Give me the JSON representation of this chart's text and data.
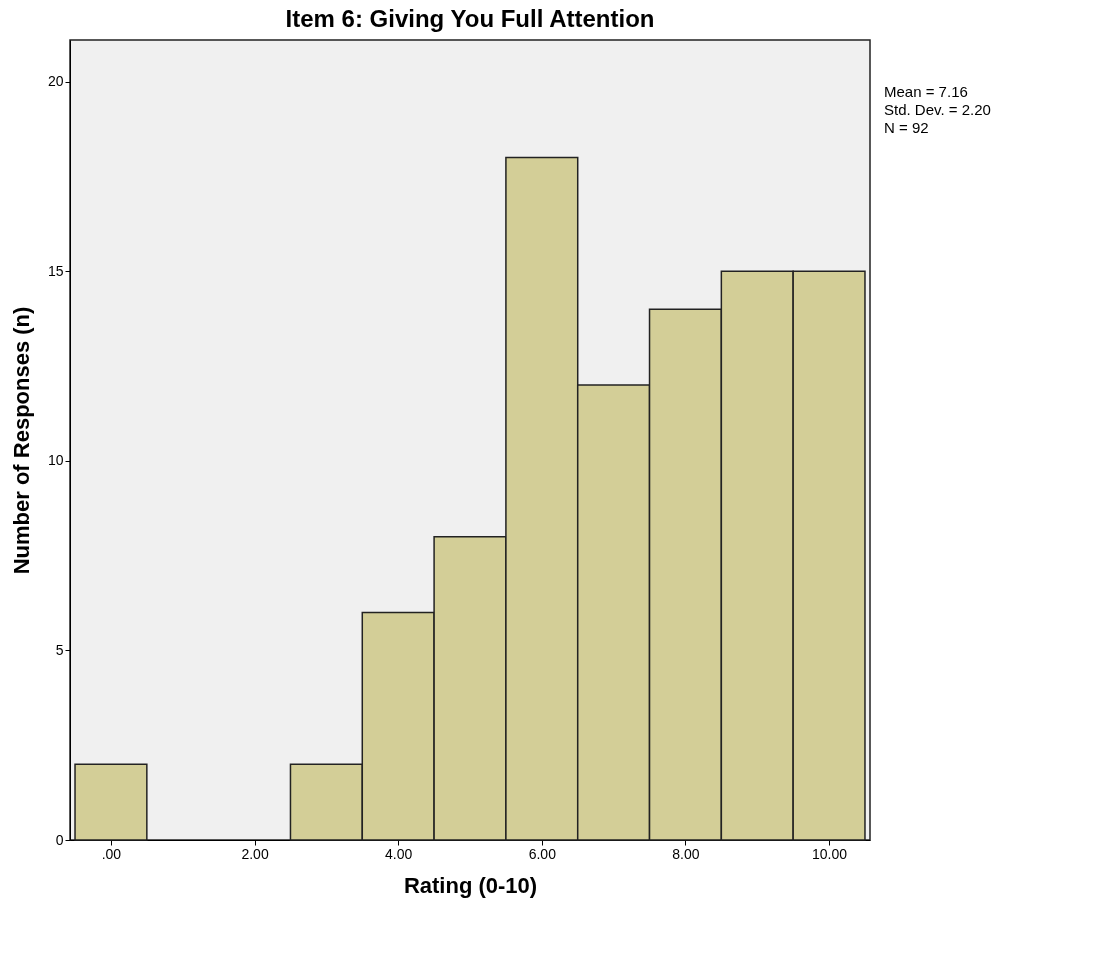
{
  "chart_data": {
    "type": "histogram",
    "title": "Item 6: Giving You Full Attention",
    "xlabel": "Rating (0-10)",
    "ylabel": "Number of Responses (n)",
    "bins": [
      -0.5,
      0.5,
      1.5,
      2.5,
      3.5,
      4.5,
      5.5,
      6.5,
      7.5,
      8.5,
      9.5,
      10.5
    ],
    "values": [
      2,
      0,
      0,
      2,
      6,
      8,
      18,
      12,
      14,
      15,
      15
    ],
    "color": "#d3ce97",
    "xlim": [
      -0.57,
      10.57
    ],
    "xticks": [
      {
        "value": 0,
        "label": ".00"
      },
      {
        "value": 2,
        "label": "2.00"
      },
      {
        "value": 4,
        "label": "4.00"
      },
      {
        "value": 6,
        "label": "6.00"
      },
      {
        "value": 8,
        "label": "8.00"
      },
      {
        "value": 10,
        "label": "10.00"
      }
    ],
    "ylim": [
      0,
      21.1
    ],
    "yticks": [
      0,
      5,
      10,
      15,
      20
    ],
    "grid": false,
    "annotations": [
      "Mean = 7.16",
      "Std. Dev. = 2.20",
      "N = 92"
    ]
  }
}
